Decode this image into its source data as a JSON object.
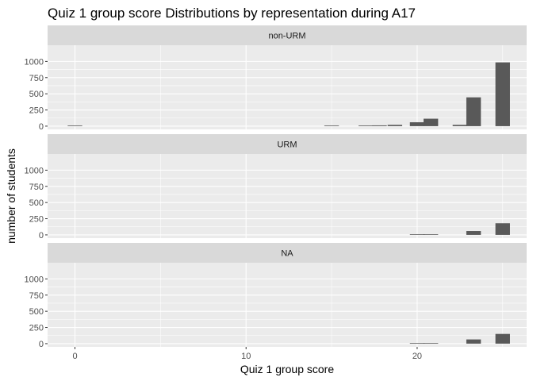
{
  "chart_data": {
    "type": "bar",
    "title": "Quiz 1 group score Distributions by representation during A17",
    "xlabel": "Quiz 1 group score",
    "ylabel": "number of students",
    "xlim": [
      -1.6,
      26.4
    ],
    "ylim": [
      -50,
      1250
    ],
    "x_ticks": [
      0,
      10,
      20
    ],
    "x_tick_labels": [
      "0",
      "10",
      "20"
    ],
    "y_ticks": [
      0,
      250,
      500,
      750,
      1000
    ],
    "y_tick_labels": [
      "0",
      "250",
      "500",
      "750",
      "1000"
    ],
    "grid": true,
    "bin_width": 0.85,
    "facets": [
      {
        "label": "non-URM",
        "bars": [
          {
            "x": 0,
            "y": 3
          },
          {
            "x": 15,
            "y": 3
          },
          {
            "x": 17,
            "y": 10
          },
          {
            "x": 17.8,
            "y": 12
          },
          {
            "x": 18.7,
            "y": 20
          },
          {
            "x": 20,
            "y": 60
          },
          {
            "x": 20.8,
            "y": 115
          },
          {
            "x": 22.5,
            "y": 20
          },
          {
            "x": 23.3,
            "y": 445
          },
          {
            "x": 25,
            "y": 985
          }
        ]
      },
      {
        "label": "URM",
        "bars": [
          {
            "x": 20,
            "y": 8
          },
          {
            "x": 20.8,
            "y": 6
          },
          {
            "x": 23.3,
            "y": 60
          },
          {
            "x": 25,
            "y": 180
          }
        ]
      },
      {
        "label": "NA",
        "bars": [
          {
            "x": 20,
            "y": 2
          },
          {
            "x": 20.8,
            "y": 3
          },
          {
            "x": 23.3,
            "y": 65
          },
          {
            "x": 25,
            "y": 150
          }
        ]
      }
    ]
  }
}
